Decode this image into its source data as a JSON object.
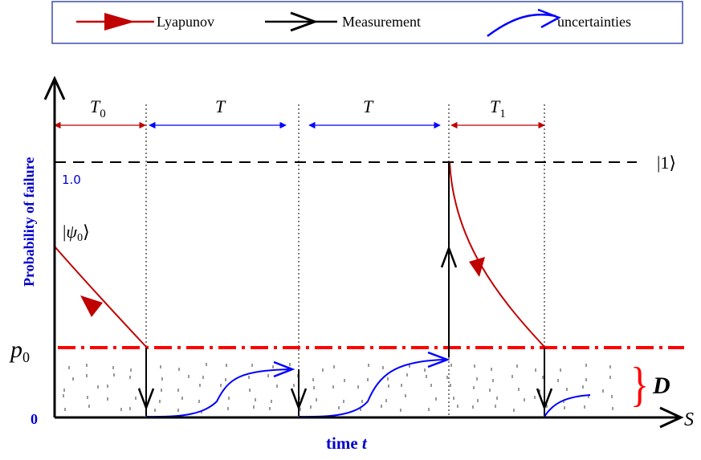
{
  "legend": {
    "items": [
      {
        "label": "Lyapunov",
        "color": "#c00000"
      },
      {
        "label": "Measurement",
        "color": "#000000"
      },
      {
        "label": "uncertainties",
        "color": "#0000ff"
      }
    ]
  },
  "axes": {
    "y_label": "Probability of failure",
    "x_label_prefix": "time",
    "x_label_var": "t",
    "x_end_label": "S",
    "y_tick_one": "1.0",
    "y_tick_zero": "0",
    "p0_label_base": "p",
    "p0_label_sub": "0"
  },
  "intervals": [
    {
      "base": "T",
      "sub": "0",
      "color": "#c00000"
    },
    {
      "base": "T",
      "sub": "",
      "color": "#0000ff"
    },
    {
      "base": "T",
      "sub": "",
      "color": "#0000ff"
    },
    {
      "base": "T",
      "sub": "1",
      "color": "#c00000"
    }
  ],
  "labels": {
    "state_one": "|1⟩",
    "state_psi_bar": "|",
    "state_psi_var": "ψ",
    "state_psi_sub": "0",
    "state_psi_end": "⟩",
    "region_brace": "}",
    "region_label": "D"
  },
  "colors": {
    "lyapunov": "#c00000",
    "uncertainty": "#0000ff",
    "threshold": "#ff0000",
    "axis_label": "#0000cc"
  }
}
